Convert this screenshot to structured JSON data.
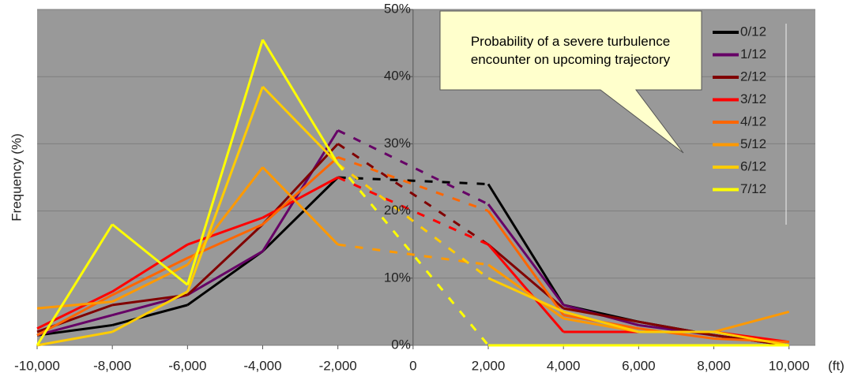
{
  "chart_data": {
    "type": "line",
    "y_label": "Frequency (%)",
    "x_label": "(ft)",
    "annotation": "Probability of a severe turbulence encounter on upcoming trajectory",
    "x": [
      -10000,
      -8000,
      -6000,
      -4000,
      -2000,
      2000,
      4000,
      6000,
      8000,
      10000
    ],
    "series": [
      {
        "name": "0/12",
        "color": "#000000",
        "values": [
          1.5,
          3,
          6,
          14,
          25,
          24,
          6,
          3.5,
          1.5,
          0
        ]
      },
      {
        "name": "1/12",
        "color": "#660066",
        "values": [
          1.5,
          4.5,
          7.5,
          14,
          32,
          21,
          6,
          3,
          1.5,
          0
        ]
      },
      {
        "name": "2/12",
        "color": "#800000",
        "values": [
          2,
          6,
          7.5,
          18,
          30,
          15,
          5.5,
          3.5,
          1.5,
          0
        ]
      },
      {
        "name": "3/12",
        "color": "#ff0000",
        "values": [
          2.5,
          8,
          15,
          19,
          25,
          15,
          2,
          2,
          2,
          0.5
        ]
      },
      {
        "name": "4/12",
        "color": "#ff6600",
        "values": [
          1.5,
          7.5,
          13,
          18,
          28,
          20,
          4.5,
          2.5,
          1,
          0.5
        ]
      },
      {
        "name": "5/12",
        "color": "#ff9900",
        "values": [
          5.5,
          6.5,
          12,
          26.5,
          15,
          12,
          4,
          2,
          2,
          5
        ]
      },
      {
        "name": "6/12",
        "color": "#ffcc00",
        "values": [
          0,
          2,
          8,
          38.5,
          27,
          10,
          5,
          2,
          2,
          0
        ]
      },
      {
        "name": "7/12",
        "color": "#ffff00",
        "values": [
          0,
          18,
          9,
          45.5,
          27,
          0,
          0,
          0,
          0,
          0
        ]
      }
    ],
    "xlim": [
      -10000,
      10700
    ],
    "ylim": [
      0,
      50
    ],
    "xticks": [
      {
        "value": -10000,
        "label": "-10,000"
      },
      {
        "value": -8000,
        "label": "-8,000"
      },
      {
        "value": -6000,
        "label": "-6,000"
      },
      {
        "value": -4000,
        "label": "-4,000"
      },
      {
        "value": -2000,
        "label": "-2,000"
      },
      0,
      {
        "value": 2000,
        "label": "2,000"
      },
      {
        "value": 4000,
        "label": "4,000"
      },
      {
        "value": 6000,
        "label": "6,000"
      },
      {
        "value": 8000,
        "label": "8,000"
      },
      {
        "value": 10000,
        "label": "10,000"
      }
    ],
    "yticks": [
      {
        "value": 0,
        "label": "0%"
      },
      {
        "value": 10,
        "label": "10%"
      },
      {
        "value": 20,
        "label": "20%"
      },
      {
        "value": 30,
        "label": "30%"
      },
      {
        "value": 40,
        "label": "40%"
      },
      {
        "value": 50,
        "label": "50%"
      }
    ],
    "grid": true,
    "dashed_range": [
      -2000,
      2000
    ]
  }
}
